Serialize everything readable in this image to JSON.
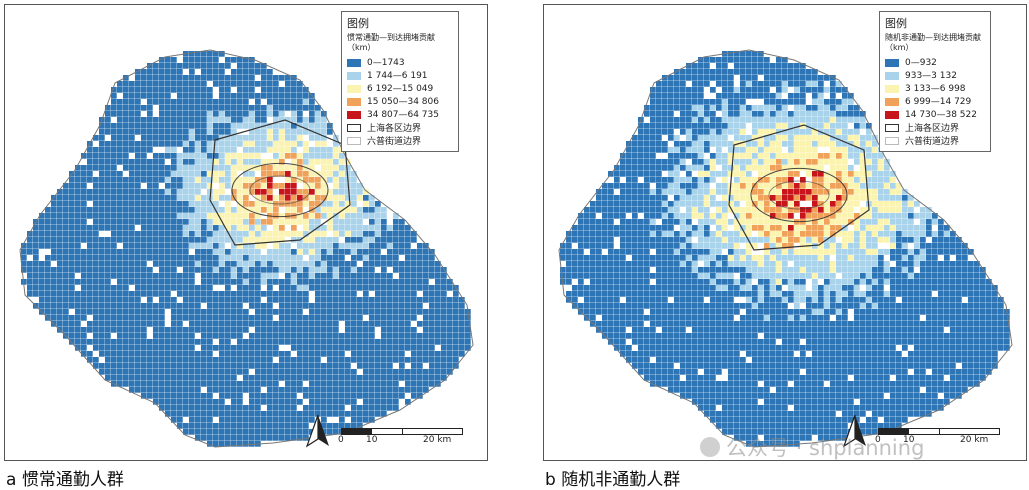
{
  "colors": {
    "c1": "#2e75b6",
    "c2": "#a9d3ea",
    "c3": "#fbf3b0",
    "c4": "#f0a25a",
    "c5": "#c8151b",
    "district_border": "#333333",
    "subdistrict_border": "#bbbbbb"
  },
  "panels": [
    {
      "id": "a",
      "caption": "a  惯常通勤人群",
      "legend": {
        "title": "图例",
        "subtitle": "惯常通勤—到达拥堵贡献（km）",
        "classes": [
          {
            "label": "0—1743",
            "color": "#2e75b6"
          },
          {
            "label": "1 744—6 191",
            "color": "#a9d3ea"
          },
          {
            "label": "6 192—15 049",
            "color": "#fbf3b0"
          },
          {
            "label": "15 050—34 806",
            "color": "#f0a25a"
          },
          {
            "label": "34 807—64 735",
            "color": "#c8151b"
          }
        ],
        "boundary_district": "上海各区边界",
        "boundary_subdistrict": "六普街道边界"
      },
      "scale_labels": [
        "0",
        "10",
        "20 km"
      ]
    },
    {
      "id": "b",
      "caption": "b  随机非通勤人群",
      "legend": {
        "title": "图例",
        "subtitle": "随机非通勤—到达拥堵贡献（km）",
        "classes": [
          {
            "label": "0—932",
            "color": "#2e75b6"
          },
          {
            "label": "933—3 132",
            "color": "#a9d3ea"
          },
          {
            "label": "3 133—6 998",
            "color": "#fbf3b0"
          },
          {
            "label": "6 999—14 729",
            "color": "#f0a25a"
          },
          {
            "label": "14 730—38 522",
            "color": "#c8151b"
          }
        ],
        "boundary_district": "上海各区边界",
        "boundary_subdistrict": "六普街道边界"
      },
      "scale_labels": [
        "0",
        "10",
        "20 km"
      ]
    }
  ],
  "watermark": "公众号 · shplanning"
}
